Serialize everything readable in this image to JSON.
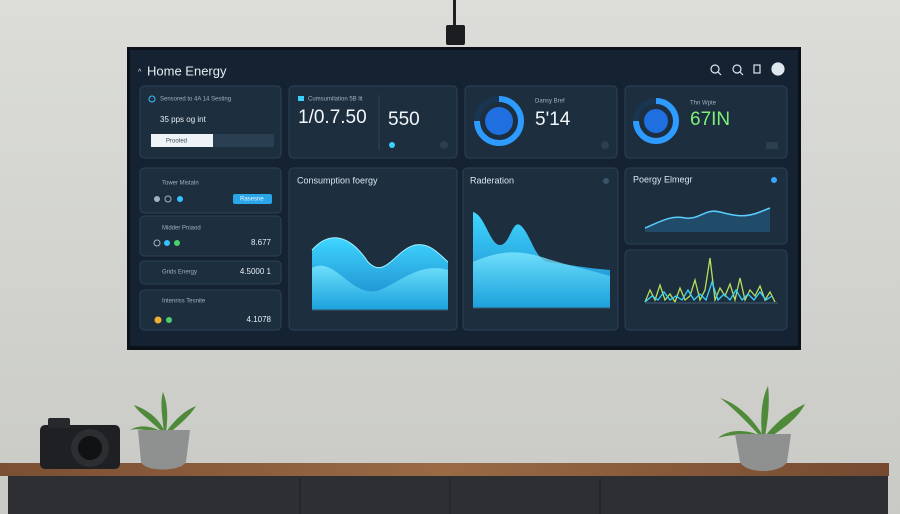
{
  "header": {
    "title": "Home Energy"
  },
  "cards": [
    {
      "label": "Sensored to 4A 14 Sesting",
      "value": "35 pps og int",
      "button": "Prooted"
    },
    {
      "label": "Cumsumilation 5B lit",
      "value": "1/0.7.50",
      "side_value": "550"
    },
    {
      "label": "Dansy Bref",
      "value": "5'14"
    },
    {
      "label": "Thn Wpte",
      "value": "67IN"
    }
  ],
  "rows": [
    {
      "label": "Tower Mistaln",
      "button": "Rasesne"
    },
    {
      "label": "Midder Pniaod",
      "value": "8.677"
    },
    {
      "label": "Grids Energy",
      "value": "4.5000 1"
    },
    {
      "label": "Intenriss Tesnite",
      "value": "4.1078"
    }
  ],
  "panels": [
    {
      "title": "Consumption foergy"
    },
    {
      "title": "Raderation"
    },
    {
      "title": "Poergy Elmegr"
    }
  ]
}
